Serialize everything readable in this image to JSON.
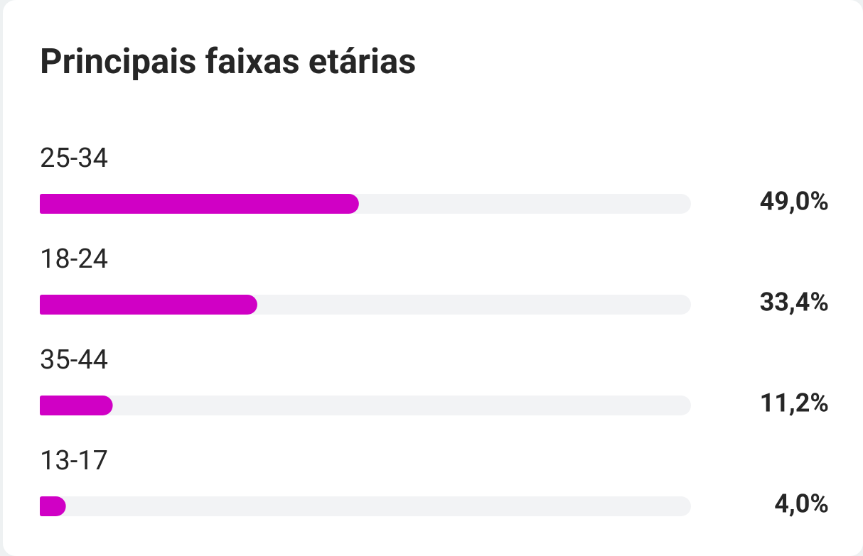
{
  "chart_data": {
    "type": "bar",
    "orientation": "horizontal",
    "title": "Principais faixas etárias",
    "categories": [
      "25-34",
      "18-24",
      "35-44",
      "13-17"
    ],
    "values": [
      49.0,
      33.4,
      11.2,
      4.0
    ],
    "value_labels": [
      "49,0%",
      "33,4%",
      "11,2%",
      "4,0%"
    ],
    "color": "#d000c5",
    "xlim": [
      0,
      100
    ]
  }
}
